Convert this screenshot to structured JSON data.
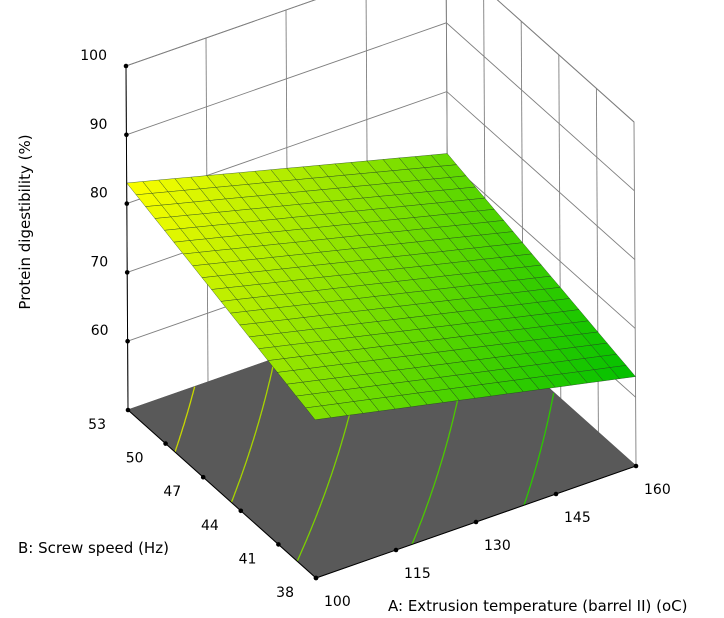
{
  "chart_data": {
    "type": "surface3d",
    "title": "",
    "x_axis": {
      "label": "A: Extrusion temperature (barrel II) (oC)",
      "range": [
        100,
        160
      ],
      "ticks": [
        "100",
        "115",
        "130",
        "145",
        "160"
      ]
    },
    "y_axis": {
      "label": "B: Screw speed (Hz)",
      "range": [
        38,
        53
      ],
      "ticks": [
        "38",
        "41",
        "44",
        "47",
        "50",
        "53"
      ]
    },
    "z_axis": {
      "label": "Protein digestibility (%)",
      "range": [
        50,
        100
      ],
      "ticks": [
        "60",
        "70",
        "80",
        "90",
        "100"
      ]
    },
    "surface_corners": [
      {
        "A": 100,
        "B": 53,
        "z": 83
      },
      {
        "A": 160,
        "B": 53,
        "z": 71
      },
      {
        "A": 100,
        "B": 38,
        "z": 73
      },
      {
        "A": 160,
        "B": 38,
        "z": 63
      }
    ],
    "surface_grid_divisions": 20,
    "colormap": [
      "#00c000",
      "#ffff00"
    ],
    "floor_color": "#595959",
    "floor_contours": [
      {
        "color": "#c8d800"
      },
      {
        "color": "#a8d400"
      },
      {
        "color": "#7cd000"
      },
      {
        "color": "#4cc800"
      },
      {
        "color": "#2cc800"
      }
    ],
    "grid": true
  }
}
